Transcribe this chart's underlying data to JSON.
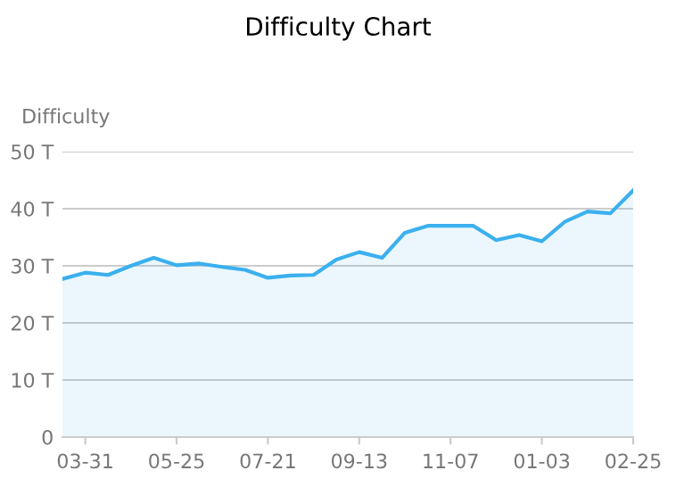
{
  "chart_data": {
    "type": "area",
    "title": "Difficulty Chart",
    "ylabel": "Difficulty",
    "categories": [
      null,
      "03-31",
      null,
      null,
      null,
      "05-25",
      null,
      null,
      null,
      "07-21",
      null,
      null,
      null,
      "09-13",
      null,
      null,
      null,
      "11-07",
      null,
      null,
      null,
      "01-03",
      null,
      null,
      null,
      "02-25"
    ],
    "series": [
      {
        "color": "#3bb0ee",
        "values": [
          27.7,
          28.8,
          28.4,
          30.0,
          31.4,
          30.1,
          30.4,
          29.8,
          29.3,
          27.9,
          28.3,
          28.4,
          31.1,
          32.4,
          31.4,
          35.8,
          37.0,
          37.0,
          37.0,
          34.5,
          35.4,
          34.3,
          37.7,
          39.5,
          39.2,
          43.2
        ]
      }
    ],
    "ylim": [
      0,
      50
    ],
    "yticks": [
      {
        "value": 0,
        "label": "0"
      },
      {
        "value": 10,
        "label": "10 T"
      },
      {
        "value": 20,
        "label": "20 T"
      },
      {
        "value": 30,
        "label": "30 T"
      },
      {
        "value": 40,
        "label": "40 T"
      },
      {
        "value": 50,
        "label": "50 T"
      }
    ],
    "grid": "y",
    "marker": "none",
    "line_style": "solid"
  }
}
